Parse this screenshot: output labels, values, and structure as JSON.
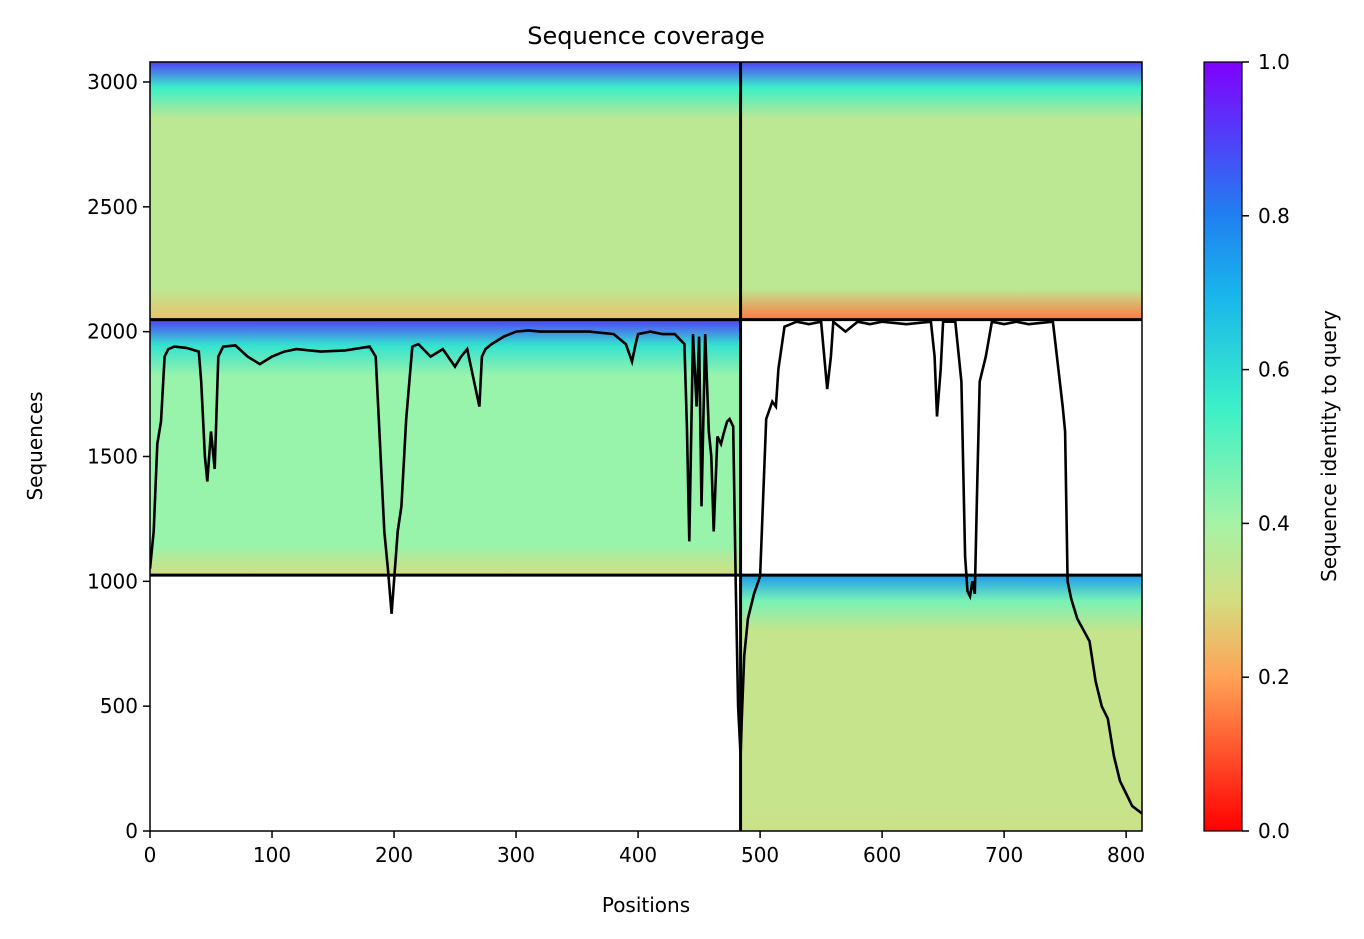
{
  "chart_data": {
    "type": "heatmap",
    "title": "Sequence coverage",
    "xlabel": "Positions",
    "ylabel": "Sequences",
    "xlim": [
      0,
      813
    ],
    "ylim": [
      0,
      3080
    ],
    "xticks": [
      0,
      100,
      200,
      300,
      400,
      500,
      600,
      700,
      800
    ],
    "yticks": [
      0,
      500,
      1000,
      1500,
      2000,
      2500,
      3000
    ],
    "colorbar": {
      "label": "Sequence identity to query",
      "range": [
        0,
        1
      ],
      "ticks": [
        "0.0",
        "0.2",
        "0.4",
        "0.6",
        "0.8",
        "1.0"
      ],
      "colormap": "rainbow_r",
      "stops": [
        {
          "value": 0.0,
          "color": "#ff0000"
        },
        {
          "value": 0.2,
          "color": "#ffa256"
        },
        {
          "value": 0.3,
          "color": "#d4dd80"
        },
        {
          "value": 0.4,
          "color": "#a6f3a6"
        },
        {
          "value": 0.55,
          "color": "#3cf0c8"
        },
        {
          "value": 0.7,
          "color": "#18b4ec"
        },
        {
          "value": 0.8,
          "color": "#2080f0"
        },
        {
          "value": 1.0,
          "color": "#8000ff"
        }
      ]
    },
    "chain_boundary_x": 484,
    "row_boundaries_y": [
      1025,
      2048
    ],
    "blocks": [
      {
        "x": [
          0,
          484
        ],
        "y": [
          2048,
          3080
        ],
        "identity_top": 0.75,
        "identity_body": 0.35,
        "identity_bottom": 0.25
      },
      {
        "x": [
          484,
          813
        ],
        "y": [
          2048,
          3080
        ],
        "identity_top": 0.75,
        "identity_body": 0.35,
        "identity_bottom": 0.15
      },
      {
        "x": [
          0,
          484
        ],
        "y": [
          1025,
          2048
        ],
        "identity_top": 0.75,
        "identity_body": 0.42,
        "identity_bottom": 0.3
      },
      {
        "x": [
          484,
          813
        ],
        "y": [
          0,
          1025
        ],
        "identity_top": 0.6,
        "identity_body": 0.33,
        "identity_bottom": 0.32
      }
    ],
    "coverage_line": {
      "color": "#000000",
      "x": [
        0,
        3,
        6,
        9,
        12,
        15,
        20,
        30,
        40,
        42,
        45,
        47,
        50,
        53,
        56,
        60,
        70,
        80,
        90,
        100,
        110,
        120,
        140,
        160,
        180,
        185,
        188,
        192,
        195,
        198,
        200,
        203,
        206,
        210,
        215,
        220,
        230,
        240,
        250,
        255,
        260,
        270,
        272,
        275,
        280,
        290,
        300,
        310,
        320,
        340,
        360,
        380,
        390,
        395,
        398,
        400,
        410,
        420,
        430,
        438,
        440,
        442,
        445,
        448,
        450,
        452,
        455,
        458,
        460,
        462,
        465,
        468,
        470,
        473,
        475,
        478,
        480,
        482,
        484,
        485,
        487,
        490,
        495,
        500,
        505,
        510,
        513,
        515,
        520,
        530,
        540,
        550,
        555,
        558,
        560,
        570,
        580,
        590,
        600,
        620,
        640,
        643,
        645,
        648,
        650,
        660,
        665,
        668,
        670,
        672,
        674,
        676,
        678,
        680,
        685,
        690,
        700,
        710,
        720,
        740,
        748,
        750,
        752,
        755,
        760,
        770,
        775,
        780,
        785,
        790,
        795,
        800,
        805,
        813
      ],
      "y": [
        1050,
        1200,
        1550,
        1640,
        1900,
        1930,
        1940,
        1935,
        1920,
        1800,
        1500,
        1400,
        1600,
        1450,
        1900,
        1940,
        1945,
        1900,
        1870,
        1900,
        1920,
        1930,
        1920,
        1925,
        1940,
        1900,
        1600,
        1200,
        1050,
        870,
        1000,
        1200,
        1300,
        1650,
        1940,
        1950,
        1900,
        1930,
        1860,
        1900,
        1930,
        1700,
        1900,
        1930,
        1950,
        1980,
        2000,
        2005,
        2000,
        2000,
        2000,
        1990,
        1950,
        1880,
        1950,
        1990,
        2000,
        1990,
        1990,
        1950,
        1620,
        1160,
        1990,
        1700,
        1980,
        1300,
        1990,
        1600,
        1500,
        1200,
        1580,
        1550,
        1590,
        1640,
        1650,
        1620,
        1000,
        500,
        300,
        450,
        700,
        850,
        950,
        1020,
        1650,
        1720,
        1700,
        1850,
        2020,
        2040,
        2030,
        2040,
        1770,
        1900,
        2040,
        2000,
        2040,
        2030,
        2040,
        2030,
        2040,
        1900,
        1660,
        1850,
        2040,
        2040,
        1800,
        1100,
        960,
        940,
        1000,
        950,
        1400,
        1800,
        1900,
        2040,
        2030,
        2040,
        2030,
        2040,
        1700,
        1600,
        1000,
        930,
        850,
        760,
        600,
        500,
        450,
        300,
        200,
        150,
        100,
        70
      ]
    }
  }
}
